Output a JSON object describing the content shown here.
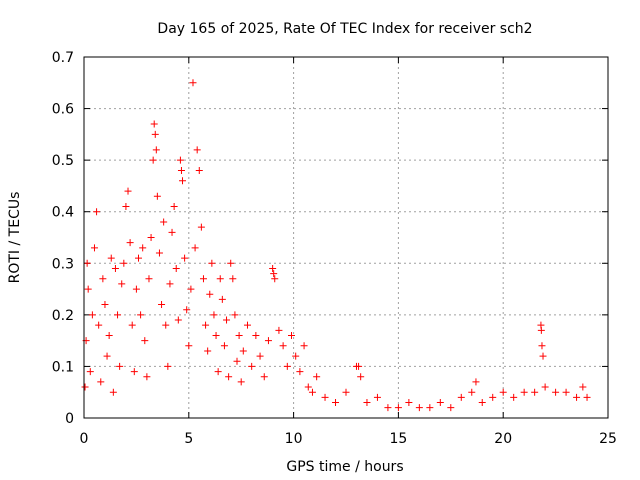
{
  "chart_data": {
    "type": "scatter",
    "title": "Day 165 of 2025, Rate Of TEC Index for receiver sch2",
    "xlabel": "GPS time / hours",
    "ylabel": "ROTI / TECUs",
    "xlim": [
      0,
      25
    ],
    "ylim": [
      0,
      0.7
    ],
    "xticks": [
      0,
      5,
      10,
      15,
      20,
      25
    ],
    "xtick_labels": [
      "0",
      "5",
      "10",
      "15",
      "20",
      "25"
    ],
    "yticks": [
      0,
      0.1,
      0.2,
      0.3,
      0.4,
      0.5,
      0.6,
      0.7
    ],
    "ytick_labels": [
      "0",
      "0.1",
      "0.2",
      "0.3",
      "0.4",
      "0.5",
      "0.6",
      "0.7"
    ],
    "grid": true,
    "marker": "+",
    "color": "#ff0000",
    "series": [
      {
        "name": "sch2",
        "points": [
          [
            0.05,
            0.06
          ],
          [
            0.1,
            0.15
          ],
          [
            0.15,
            0.3
          ],
          [
            0.2,
            0.25
          ],
          [
            0.3,
            0.09
          ],
          [
            0.4,
            0.2
          ],
          [
            0.5,
            0.33
          ],
          [
            0.6,
            0.4
          ],
          [
            0.7,
            0.18
          ],
          [
            0.8,
            0.07
          ],
          [
            0.9,
            0.27
          ],
          [
            1.0,
            0.22
          ],
          [
            1.1,
            0.12
          ],
          [
            1.2,
            0.16
          ],
          [
            1.3,
            0.31
          ],
          [
            1.4,
            0.05
          ],
          [
            1.5,
            0.29
          ],
          [
            1.6,
            0.2
          ],
          [
            1.7,
            0.1
          ],
          [
            1.8,
            0.26
          ],
          [
            1.9,
            0.3
          ],
          [
            2.0,
            0.41
          ],
          [
            2.1,
            0.44
          ],
          [
            2.2,
            0.34
          ],
          [
            2.3,
            0.18
          ],
          [
            2.4,
            0.09
          ],
          [
            2.5,
            0.25
          ],
          [
            2.6,
            0.31
          ],
          [
            2.7,
            0.2
          ],
          [
            2.8,
            0.33
          ],
          [
            2.9,
            0.15
          ],
          [
            3.0,
            0.08
          ],
          [
            3.1,
            0.27
          ],
          [
            3.2,
            0.35
          ],
          [
            3.3,
            0.5
          ],
          [
            3.35,
            0.57
          ],
          [
            3.4,
            0.55
          ],
          [
            3.45,
            0.52
          ],
          [
            3.5,
            0.43
          ],
          [
            3.6,
            0.32
          ],
          [
            3.7,
            0.22
          ],
          [
            3.8,
            0.38
          ],
          [
            3.9,
            0.18
          ],
          [
            4.0,
            0.1
          ],
          [
            4.1,
            0.26
          ],
          [
            4.2,
            0.36
          ],
          [
            4.3,
            0.41
          ],
          [
            4.4,
            0.29
          ],
          [
            4.5,
            0.19
          ],
          [
            4.6,
            0.5
          ],
          [
            4.65,
            0.48
          ],
          [
            4.7,
            0.46
          ],
          [
            4.8,
            0.31
          ],
          [
            4.9,
            0.21
          ],
          [
            5.0,
            0.14
          ],
          [
            5.1,
            0.25
          ],
          [
            5.2,
            0.65
          ],
          [
            5.3,
            0.33
          ],
          [
            5.4,
            0.52
          ],
          [
            5.5,
            0.48
          ],
          [
            5.6,
            0.37
          ],
          [
            5.7,
            0.27
          ],
          [
            5.8,
            0.18
          ],
          [
            5.9,
            0.13
          ],
          [
            6.0,
            0.24
          ],
          [
            6.1,
            0.3
          ],
          [
            6.2,
            0.2
          ],
          [
            6.3,
            0.16
          ],
          [
            6.4,
            0.09
          ],
          [
            6.5,
            0.27
          ],
          [
            6.6,
            0.23
          ],
          [
            6.7,
            0.14
          ],
          [
            6.8,
            0.19
          ],
          [
            6.9,
            0.08
          ],
          [
            7.0,
            0.3
          ],
          [
            7.1,
            0.27
          ],
          [
            7.2,
            0.2
          ],
          [
            7.3,
            0.11
          ],
          [
            7.4,
            0.16
          ],
          [
            7.5,
            0.07
          ],
          [
            7.6,
            0.13
          ],
          [
            7.8,
            0.18
          ],
          [
            8.0,
            0.1
          ],
          [
            8.2,
            0.16
          ],
          [
            8.4,
            0.12
          ],
          [
            8.6,
            0.08
          ],
          [
            8.8,
            0.15
          ],
          [
            9.0,
            0.29
          ],
          [
            9.05,
            0.28
          ],
          [
            9.1,
            0.27
          ],
          [
            9.3,
            0.17
          ],
          [
            9.5,
            0.14
          ],
          [
            9.7,
            0.1
          ],
          [
            9.9,
            0.16
          ],
          [
            10.1,
            0.12
          ],
          [
            10.3,
            0.09
          ],
          [
            10.5,
            0.14
          ],
          [
            10.7,
            0.06
          ],
          [
            10.9,
            0.05
          ],
          [
            11.1,
            0.08
          ],
          [
            11.5,
            0.04
          ],
          [
            12.0,
            0.03
          ],
          [
            12.5,
            0.05
          ],
          [
            13.0,
            0.1
          ],
          [
            13.1,
            0.1
          ],
          [
            13.2,
            0.08
          ],
          [
            13.5,
            0.03
          ],
          [
            14.0,
            0.04
          ],
          [
            14.5,
            0.02
          ],
          [
            15.0,
            0.02
          ],
          [
            15.5,
            0.03
          ],
          [
            16.0,
            0.02
          ],
          [
            16.5,
            0.02
          ],
          [
            17.0,
            0.03
          ],
          [
            17.5,
            0.02
          ],
          [
            18.0,
            0.04
          ],
          [
            18.5,
            0.05
          ],
          [
            18.7,
            0.07
          ],
          [
            19.0,
            0.03
          ],
          [
            19.5,
            0.04
          ],
          [
            20.0,
            0.05
          ],
          [
            20.5,
            0.04
          ],
          [
            21.0,
            0.05
          ],
          [
            21.5,
            0.05
          ],
          [
            21.8,
            0.18
          ],
          [
            21.82,
            0.17
          ],
          [
            21.85,
            0.14
          ],
          [
            21.9,
            0.12
          ],
          [
            22.0,
            0.06
          ],
          [
            22.5,
            0.05
          ],
          [
            23.0,
            0.05
          ],
          [
            23.5,
            0.04
          ],
          [
            23.8,
            0.06
          ],
          [
            24.0,
            0.04
          ]
        ]
      }
    ]
  }
}
